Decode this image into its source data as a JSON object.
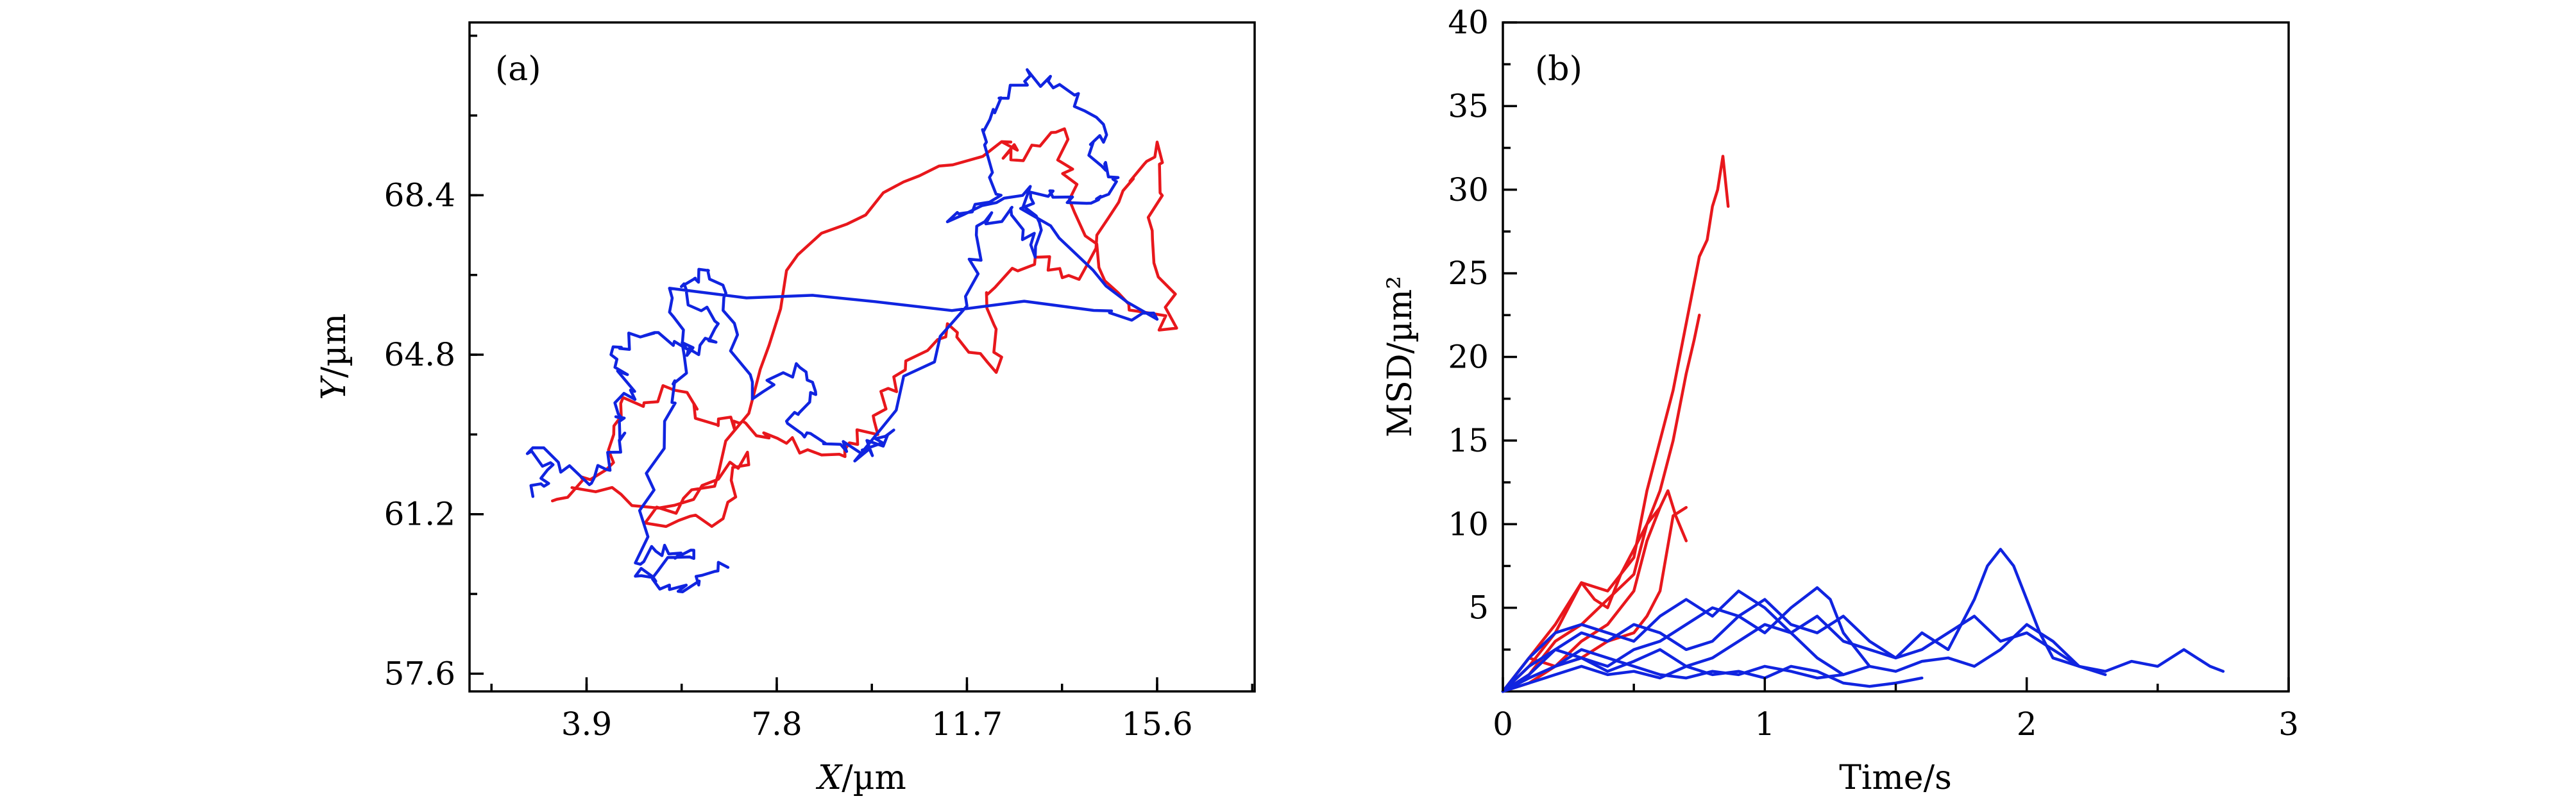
{
  "colors": {
    "red": "#e8171c",
    "blue": "#1024e0",
    "axis": "#000000"
  },
  "chart_data": [
    {
      "type": "line",
      "panel_label": "(a)",
      "xlabel_var": "X",
      "xlabel_unit": "/µm",
      "ylabel_var": "Y",
      "ylabel_unit": "/µm",
      "xlim": [
        1.5,
        17.6
      ],
      "ylim": [
        57.2,
        72.3
      ],
      "xticks": [
        3.9,
        7.8,
        11.7,
        15.6
      ],
      "xtick_labels": [
        "3.9",
        "7.8",
        "11.7",
        "15.6"
      ],
      "yticks": [
        57.6,
        61.2,
        64.8,
        68.4
      ],
      "ytick_labels": [
        "57.6",
        "61.2",
        "64.8",
        "68.4"
      ],
      "series": [
        {
          "name": "red trajectory",
          "color": "#e8171c",
          "seed": 11,
          "waypoints": [
            [
              3.2,
              61.5
            ],
            [
              4.3,
              62.2
            ],
            [
              4.6,
              63.7
            ],
            [
              5.7,
              64.0
            ],
            [
              6.6,
              63.2
            ],
            [
              7.1,
              63.3
            ],
            [
              8.0,
              62.8
            ],
            [
              9.2,
              62.5
            ],
            [
              9.8,
              63.3
            ],
            [
              10.2,
              64.3
            ],
            [
              11.3,
              65.5
            ],
            [
              12.3,
              64.4
            ],
            [
              12.1,
              66.2
            ],
            [
              13.1,
              67.0
            ],
            [
              14.0,
              66.5
            ],
            [
              14.9,
              68.5
            ],
            [
              15.6,
              69.6
            ],
            [
              15.5,
              67.6
            ],
            [
              16.0,
              65.4
            ],
            [
              14.8,
              66.2
            ],
            [
              13.8,
              68.3
            ],
            [
              13.7,
              69.9
            ],
            [
              12.6,
              69.2
            ],
            [
              12.6,
              69.6
            ],
            [
              10.4,
              68.7
            ],
            [
              8.0,
              66.7
            ],
            [
              6.6,
              62.1
            ],
            [
              5.1,
              61.0
            ],
            [
              6.7,
              61.1
            ],
            [
              7.2,
              62.6
            ],
            [
              5.7,
              61.4
            ],
            [
              3.6,
              61.8
            ]
          ]
        },
        {
          "name": "blue trajectory",
          "color": "#1024e0",
          "seed": 29,
          "waypoints": [
            [
              2.8,
              61.6
            ],
            [
              3.1,
              62.2
            ],
            [
              2.8,
              62.7
            ],
            [
              4.0,
              61.9
            ],
            [
              4.6,
              62.6
            ],
            [
              4.5,
              63.4
            ],
            [
              4.8,
              64.0
            ],
            [
              4.4,
              64.8
            ],
            [
              5.0,
              65.2
            ],
            [
              5.7,
              65.1
            ],
            [
              6.2,
              64.8
            ],
            [
              6.6,
              65.5
            ],
            [
              5.9,
              66.4
            ],
            [
              6.4,
              66.7
            ],
            [
              6.7,
              65.8
            ],
            [
              7.3,
              63.8
            ],
            [
              8.2,
              64.6
            ],
            [
              8.6,
              63.9
            ],
            [
              8.0,
              63.3
            ],
            [
              8.8,
              62.8
            ],
            [
              9.6,
              62.6
            ],
            [
              10.2,
              63.1
            ],
            [
              9.4,
              62.4
            ],
            [
              11.7,
              65.9
            ],
            [
              11.9,
              67.7
            ],
            [
              12.6,
              68.1
            ],
            [
              13.1,
              67.0
            ],
            [
              13.0,
              68.6
            ],
            [
              11.3,
              67.8
            ],
            [
              12.4,
              68.4
            ],
            [
              12.1,
              69.6
            ],
            [
              12.4,
              70.6
            ],
            [
              13.0,
              71.1
            ],
            [
              13.6,
              70.9
            ],
            [
              14.5,
              70.0
            ],
            [
              14.2,
              69.3
            ],
            [
              14.8,
              68.8
            ],
            [
              14.4,
              68.3
            ],
            [
              13.4,
              68.5
            ],
            [
              12.8,
              68.1
            ],
            [
              15.6,
              65.6
            ],
            [
              14.3,
              65.8
            ],
            [
              5.6,
              66.3
            ],
            [
              5.9,
              64.8
            ],
            [
              5.5,
              63.3
            ],
            [
              4.9,
              60.1
            ],
            [
              5.5,
              60.5
            ],
            [
              6.1,
              60.2
            ],
            [
              4.9,
              59.8
            ],
            [
              5.6,
              59.6
            ],
            [
              6.2,
              59.6
            ],
            [
              6.8,
              60.0
            ]
          ]
        }
      ]
    },
    {
      "type": "line",
      "panel_label": "(b)",
      "xlabel": "Time/s",
      "ylabel": "MSD/µm²",
      "xlim": [
        0,
        3
      ],
      "ylim": [
        0,
        40
      ],
      "xticks": [
        0,
        1,
        2,
        3
      ],
      "xtick_labels": [
        "0",
        "1",
        "2",
        "3"
      ],
      "yticks": [
        5,
        10,
        15,
        20,
        25,
        30,
        35,
        40
      ],
      "ytick_labels": [
        "5",
        "10",
        "15",
        "20",
        "25",
        "30",
        "35",
        "40"
      ],
      "series": [
        {
          "name": "red 1",
          "color": "#e8171c",
          "x": [
            0,
            0.1,
            0.2,
            0.3,
            0.4,
            0.5,
            0.55,
            0.6,
            0.65,
            0.7,
            0.75,
            0.78,
            0.8,
            0.82,
            0.84,
            0.86
          ],
          "y": [
            0,
            1.5,
            3.5,
            6.5,
            6.0,
            8.0,
            12.0,
            15.0,
            18.0,
            22.0,
            26.0,
            27.0,
            29.0,
            30.0,
            32.0,
            29.0
          ]
        },
        {
          "name": "red 2",
          "color": "#e8171c",
          "x": [
            0,
            0.1,
            0.2,
            0.3,
            0.4,
            0.5,
            0.55,
            0.6,
            0.65,
            0.7,
            0.73,
            0.75
          ],
          "y": [
            0,
            1.0,
            3.0,
            4.0,
            5.5,
            7.0,
            10.0,
            12.0,
            15.0,
            19.0,
            21.0,
            22.5
          ]
        },
        {
          "name": "red 3",
          "color": "#e8171c",
          "x": [
            0,
            0.1,
            0.2,
            0.3,
            0.4,
            0.5,
            0.55,
            0.6,
            0.63,
            0.66,
            0.7
          ],
          "y": [
            0,
            2.0,
            1.5,
            3.0,
            4.0,
            6.0,
            9.0,
            11.0,
            12.0,
            10.5,
            9.0
          ]
        },
        {
          "name": "red 4",
          "color": "#e8171c",
          "x": [
            0,
            0.1,
            0.2,
            0.3,
            0.35,
            0.4,
            0.45,
            0.5,
            0.55,
            0.6
          ],
          "y": [
            0,
            2.0,
            4.0,
            6.5,
            5.5,
            5.0,
            7.0,
            8.5,
            10.0,
            11.0
          ]
        },
        {
          "name": "red 5",
          "color": "#e8171c",
          "x": [
            0,
            0.1,
            0.2,
            0.3,
            0.4,
            0.5,
            0.55,
            0.6,
            0.65,
            0.7
          ],
          "y": [
            0,
            0.5,
            1.5,
            2.0,
            3.0,
            3.5,
            4.5,
            6.0,
            10.5,
            11.0
          ]
        },
        {
          "name": "blue 1",
          "color": "#1024e0",
          "x": [
            0,
            0.1,
            0.2,
            0.3,
            0.4,
            0.5,
            0.6,
            0.7,
            0.8,
            0.9,
            1.0,
            1.1,
            1.2,
            1.3,
            1.4,
            1.5,
            1.6,
            1.7,
            1.8,
            1.85,
            1.9,
            1.95,
            2.0,
            2.05,
            2.1,
            2.2,
            2.3,
            2.4,
            2.5,
            2.6,
            2.7,
            2.75
          ],
          "y": [
            0,
            0.8,
            1.5,
            2.0,
            1.2,
            1.8,
            2.5,
            1.5,
            2.0,
            3.0,
            4.0,
            3.5,
            4.5,
            3.0,
            2.5,
            2.0,
            3.5,
            2.5,
            5.5,
            7.5,
            8.5,
            7.5,
            5.5,
            3.5,
            2.0,
            1.5,
            1.2,
            1.8,
            1.5,
            2.5,
            1.5,
            1.2
          ]
        },
        {
          "name": "blue 2",
          "color": "#1024e0",
          "x": [
            0,
            0.1,
            0.2,
            0.3,
            0.4,
            0.5,
            0.6,
            0.7,
            0.8,
            0.9,
            1.0,
            1.1,
            1.2,
            1.3,
            1.4,
            1.5,
            1.6,
            1.7,
            1.8,
            1.9,
            2.0,
            2.1,
            2.2,
            2.3
          ],
          "y": [
            0,
            1.0,
            2.5,
            3.5,
            3.0,
            4.0,
            3.5,
            2.5,
            3.0,
            4.5,
            5.5,
            4.0,
            3.5,
            4.5,
            3.0,
            2.0,
            2.5,
            3.5,
            4.5,
            3.0,
            3.5,
            2.5,
            1.5,
            1.0
          ]
        },
        {
          "name": "blue 3",
          "color": "#1024e0",
          "x": [
            0,
            0.1,
            0.2,
            0.3,
            0.4,
            0.5,
            0.6,
            0.7,
            0.8,
            0.9,
            1.0,
            1.1,
            1.2,
            1.3
          ],
          "y": [
            0,
            2.0,
            3.5,
            4.0,
            3.5,
            3.0,
            4.5,
            5.5,
            4.5,
            6.0,
            5.0,
            3.5,
            2.0,
            1.0
          ]
        },
        {
          "name": "blue 4",
          "color": "#1024e0",
          "x": [
            0,
            0.1,
            0.2,
            0.3,
            0.4,
            0.5,
            0.6,
            0.7,
            0.8,
            0.9,
            1.0,
            1.1,
            1.2,
            1.25,
            1.3,
            1.4
          ],
          "y": [
            0,
            1.5,
            2.5,
            2.0,
            1.5,
            2.5,
            3.0,
            4.0,
            5.0,
            4.5,
            3.5,
            5.0,
            6.2,
            5.5,
            3.5,
            1.5
          ]
        },
        {
          "name": "blue 5",
          "color": "#1024e0",
          "x": [
            0,
            0.1,
            0.2,
            0.3,
            0.4,
            0.5,
            0.6,
            0.7,
            0.8,
            0.9,
            1.0,
            1.1,
            1.2,
            1.3,
            1.4,
            1.5,
            1.6
          ],
          "y": [
            0,
            0.5,
            1.0,
            1.5,
            1.0,
            1.2,
            0.8,
            1.5,
            1.0,
            1.2,
            0.8,
            1.5,
            1.2,
            0.5,
            0.3,
            0.5,
            0.8
          ]
        },
        {
          "name": "blue 6",
          "color": "#1024e0",
          "x": [
            0,
            0.1,
            0.2,
            0.3,
            0.4,
            0.5,
            0.6,
            0.7,
            0.8,
            0.9,
            1.0,
            1.1,
            1.2,
            1.3,
            1.4,
            1.5,
            1.6,
            1.7,
            1.8,
            1.9,
            2.0,
            2.1,
            2.2
          ],
          "y": [
            0,
            0.8,
            1.5,
            2.5,
            2.0,
            1.5,
            1.0,
            0.8,
            1.2,
            1.0,
            1.5,
            1.2,
            0.8,
            1.0,
            1.5,
            1.2,
            1.8,
            2.0,
            1.5,
            2.5,
            4.0,
            3.0,
            1.5
          ]
        }
      ]
    }
  ]
}
